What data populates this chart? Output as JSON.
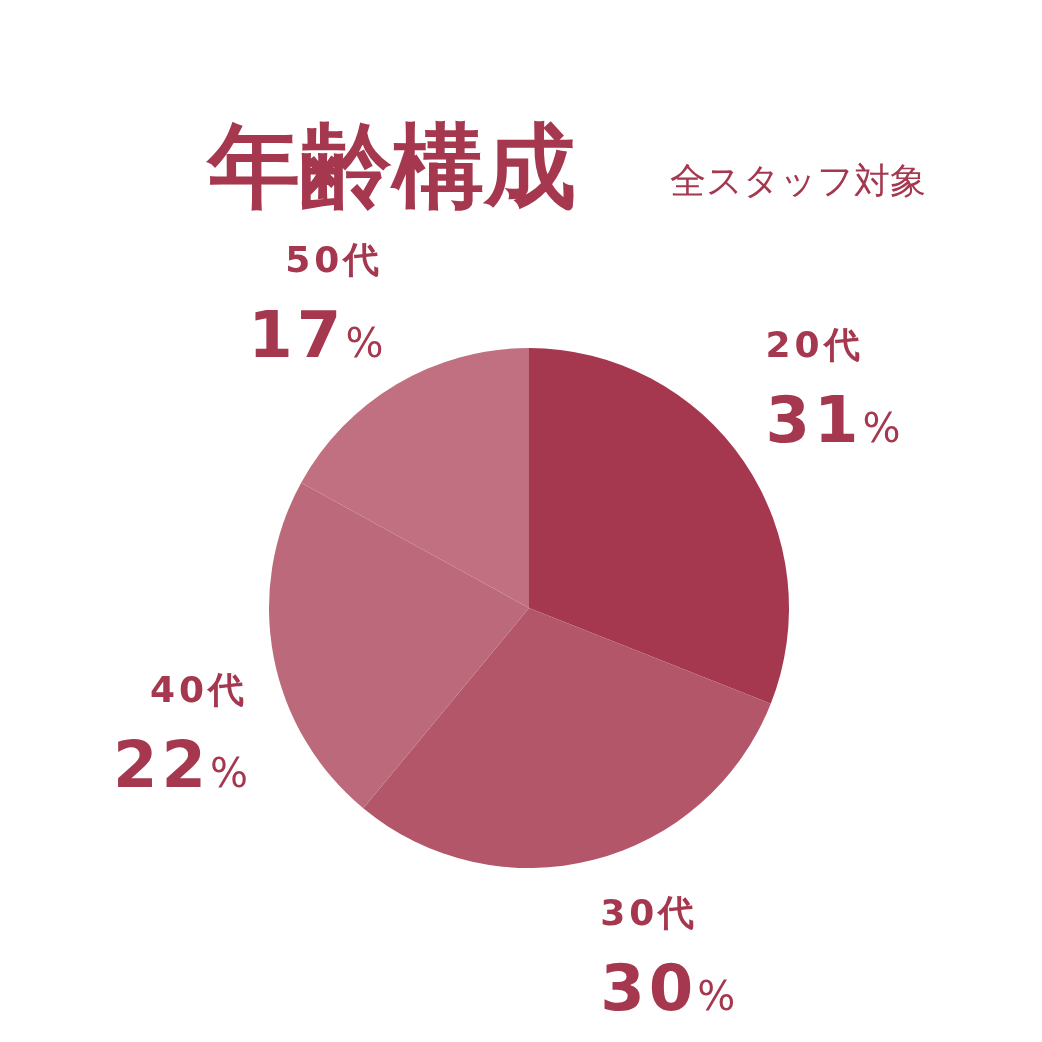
{
  "chart_data": {
    "type": "pie",
    "title": "年齢構成",
    "subtitle": "全スタッフ対象",
    "categories": [
      "20代",
      "30代",
      "40代",
      "50代"
    ],
    "values": [
      31,
      30,
      22,
      17
    ],
    "colors": [
      "#a5384f",
      "#b35669",
      "#bc6a7b",
      "#c07080"
    ],
    "value_labels": [
      "31%",
      "30%",
      "22%",
      "17%"
    ]
  }
}
